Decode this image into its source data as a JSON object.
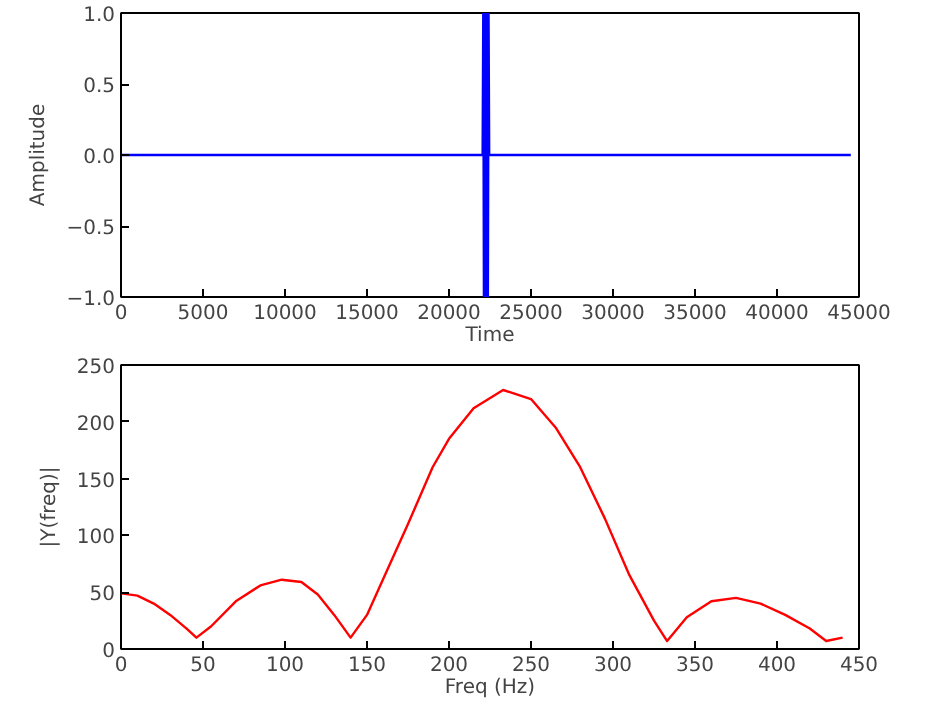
{
  "chart_data": [
    {
      "type": "line",
      "xlabel": "Time",
      "ylabel": "Amplitude",
      "xlim": [
        0,
        45000
      ],
      "ylim": [
        -1.0,
        1.0
      ],
      "xticks": [
        0,
        5000,
        10000,
        15000,
        20000,
        25000,
        30000,
        35000,
        40000,
        45000
      ],
      "yticks": [
        {
          "value": -1.0,
          "label": "−1.0"
        },
        {
          "value": -0.5,
          "label": "−0.5"
        },
        {
          "value": 0,
          "label": "0.0"
        },
        {
          "value": 0.5,
          "label": "0.5"
        },
        {
          "value": 1.0,
          "label": "1.0"
        }
      ],
      "grid": false,
      "marker": "none",
      "line_style": "solid",
      "series": [
        {
          "color": "#0000ff",
          "x": [
            0,
            22050,
            22090,
            22130,
            22170,
            22210,
            22250,
            22290,
            22330,
            22370,
            22410,
            22450,
            44500
          ],
          "values": [
            0,
            0,
            1,
            -1,
            1,
            -1,
            1,
            -1,
            1,
            -1,
            1,
            0,
            0
          ]
        }
      ]
    },
    {
      "type": "line",
      "xlabel": "Freq (Hz)",
      "ylabel": "|Y(freq)|",
      "xlim": [
        0,
        450
      ],
      "ylim": [
        0,
        250
      ],
      "xticks": [
        0,
        50,
        100,
        150,
        200,
        250,
        300,
        350,
        400,
        450
      ],
      "yticks": [
        0,
        50,
        100,
        150,
        200,
        250
      ],
      "grid": false,
      "marker": "none",
      "line_style": "solid",
      "series": [
        {
          "color": "#ff0000",
          "x": [
            0,
            10,
            20,
            30,
            40,
            46,
            55,
            70,
            85,
            98,
            110,
            120,
            130,
            140,
            150,
            160,
            175,
            190,
            200,
            215,
            233,
            250,
            265,
            280,
            295,
            310,
            325,
            333,
            345,
            360,
            375,
            390,
            405,
            420,
            430,
            440
          ],
          "values": [
            49,
            47,
            40,
            30,
            18,
            10,
            20,
            42,
            56,
            61,
            59,
            48,
            30,
            10,
            30,
            62,
            110,
            160,
            185,
            212,
            228,
            220,
            195,
            160,
            115,
            65,
            25,
            7,
            28,
            42,
            45,
            40,
            30,
            18,
            7,
            10
          ]
        }
      ]
    }
  ]
}
